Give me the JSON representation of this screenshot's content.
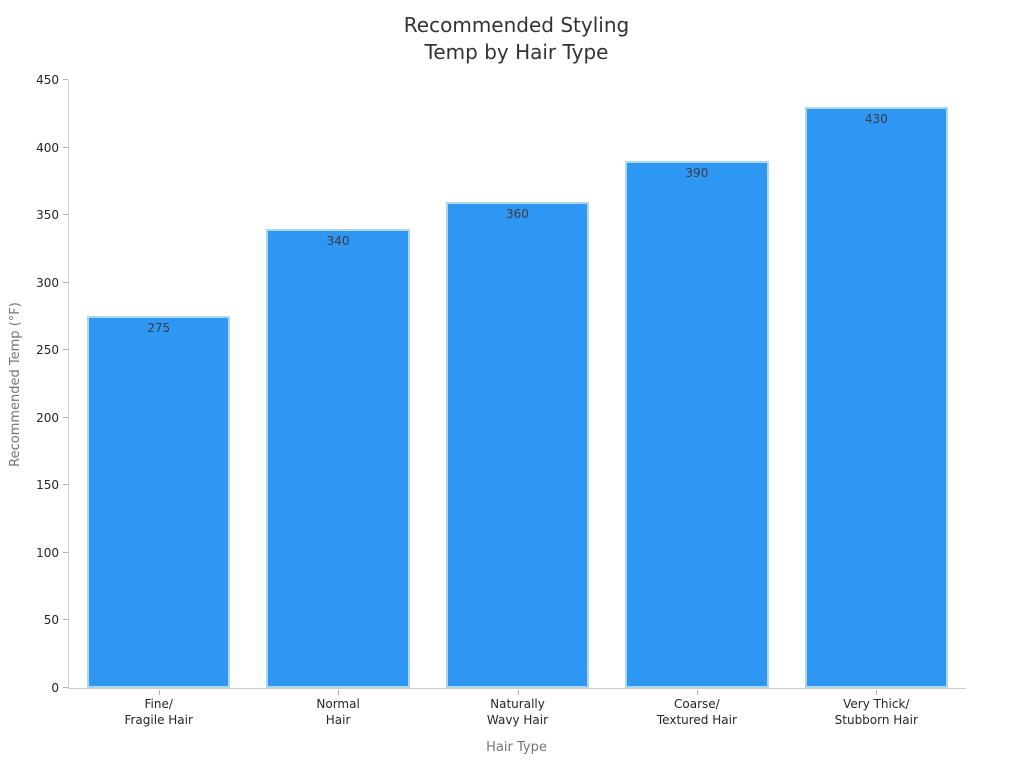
{
  "chart_data": {
    "type": "bar",
    "title": "Recommended Styling\nTemp by Hair Type",
    "xlabel": "Hair Type",
    "ylabel": "Recommended Temp (°F)",
    "categories": [
      "Fine/\nFragile Hair",
      "Normal\nHair",
      "Naturally\nWavy Hair",
      "Coarse/\nTextured Hair",
      "Very Thick/\nStubborn Hair"
    ],
    "values": [
      275,
      340,
      360,
      390,
      430
    ],
    "bar_labels": [
      "275",
      "340",
      "360",
      "390",
      "430"
    ],
    "ylim": [
      0,
      450
    ],
    "yticks": [
      0,
      50,
      100,
      150,
      200,
      250,
      300,
      350,
      400,
      450
    ],
    "grid": false,
    "legend": null,
    "bar_width_fraction": 0.8,
    "colors": {
      "bar_fill": "#2e96f3",
      "bar_edge": "#add8e6",
      "axis_line": "#cccccc",
      "tick_mark": "#b0b0b0",
      "tick_label": "#262626",
      "value_label": "#3d3d3d",
      "axis_label": "#757575",
      "title": "#333333",
      "background": "#ffffff"
    }
  }
}
